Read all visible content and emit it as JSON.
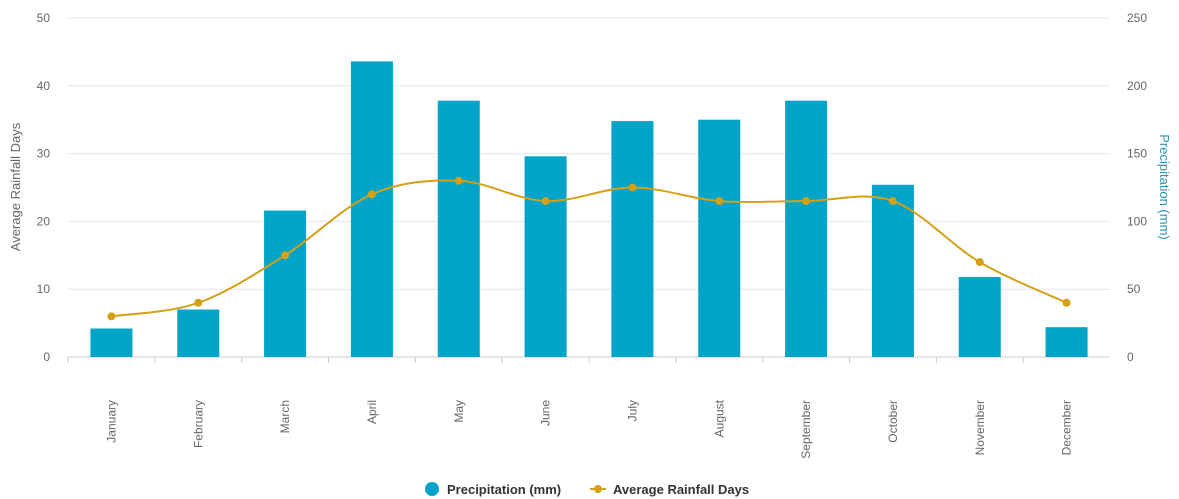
{
  "chart_data": {
    "type": "bar",
    "categories": [
      "January",
      "February",
      "March",
      "April",
      "May",
      "June",
      "July",
      "August",
      "September",
      "October",
      "November",
      "December"
    ],
    "series": [
      {
        "name": "Precipitation (mm)",
        "type": "bar",
        "axis": "right",
        "color": "#00a4c8",
        "values": [
          21,
          35,
          108,
          218,
          189,
          148,
          174,
          175,
          189,
          127,
          59,
          22
        ]
      },
      {
        "name": "Average Rainfall Days",
        "type": "line",
        "axis": "left",
        "color": "#d4a017",
        "smooth": true,
        "values": [
          6,
          8,
          15,
          24,
          26,
          23,
          25,
          23,
          23,
          23,
          14,
          8
        ]
      }
    ],
    "y_left": {
      "label": "Average Rainfall Days",
      "ylim": [
        0,
        50
      ],
      "ticks": [
        0,
        10,
        20,
        30,
        40,
        50
      ]
    },
    "y_right": {
      "label": "Precipitation (mm)",
      "ylim": [
        0,
        250
      ],
      "ticks": [
        0,
        50,
        100,
        150,
        200,
        250
      ]
    },
    "grid": true,
    "legend_position": "bottom-center"
  }
}
